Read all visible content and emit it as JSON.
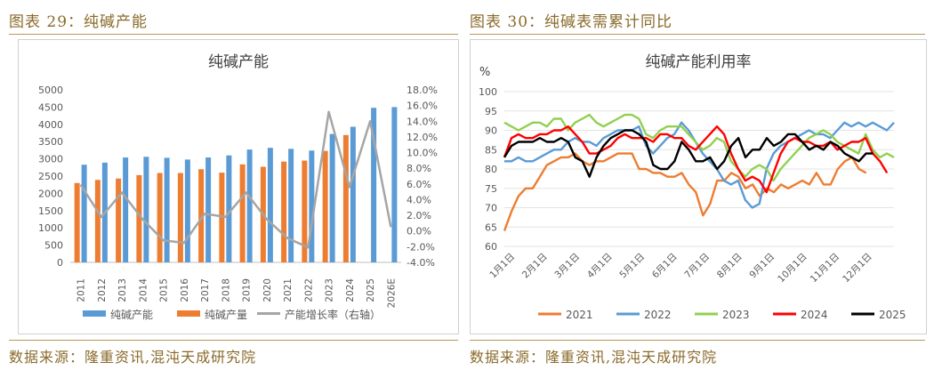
{
  "left": {
    "header": "图表 29：纯碱产能",
    "source": "数据来源：隆重资讯,混沌天成研究院",
    "chart_data": {
      "type": "bar",
      "title": "纯碱产能",
      "categories": [
        "2011",
        "2012",
        "2013",
        "2014",
        "2015",
        "2016",
        "2017",
        "2018",
        "2019",
        "2020",
        "2021",
        "2022",
        "2023",
        "2024",
        "2025",
        "2026E"
      ],
      "series": [
        {
          "name": "纯碱产能",
          "kind": "bar",
          "color": "#5b9bd5",
          "values": [
            2830,
            2890,
            3040,
            3060,
            3030,
            2980,
            3040,
            3100,
            3270,
            3320,
            3290,
            3240,
            3720,
            3930,
            4480,
            4500
          ]
        },
        {
          "name": "纯碱产量",
          "kind": "bar",
          "color": "#ed7d31",
          "values": [
            2300,
            2390,
            2430,
            2530,
            2590,
            2590,
            2700,
            2600,
            2840,
            2770,
            2920,
            2950,
            3230,
            3690,
            null,
            null
          ]
        },
        {
          "name": "产能增长率（右轴）",
          "kind": "line",
          "axis": "right",
          "color": "#a5a5a5",
          "values": [
            5.9,
            1.8,
            4.9,
            1.5,
            -1.2,
            -1.5,
            2.2,
            1.8,
            4.9,
            1.5,
            -0.9,
            -2.1,
            15.2,
            5.6,
            14.0,
            0.5
          ]
        }
      ],
      "yleft": {
        "min": 0,
        "max": 5000,
        "ticks": [
          "0",
          "500",
          "1000",
          "1500",
          "2000",
          "2500",
          "3000",
          "3500",
          "4000",
          "4500",
          "5000"
        ]
      },
      "yright": {
        "min": -4,
        "max": 18,
        "ticks": [
          "-4.0%",
          "-2.0%",
          "0.0%",
          "2.0%",
          "4.0%",
          "6.0%",
          "8.0%",
          "10.0%",
          "12.0%",
          "14.0%",
          "16.0%",
          "18.0%"
        ]
      },
      "legend": "bottom",
      "grid": false
    }
  },
  "right": {
    "header": "图表 30：纯碱表需累计同比",
    "source": "数据来源：隆重资讯,混沌天成研究院",
    "chart_data": {
      "type": "line",
      "title": "纯碱产能利用率",
      "yunit": "%",
      "ylim": [
        60,
        100
      ],
      "yticks": [
        "60",
        "65",
        "70",
        "75",
        "80",
        "85",
        "90",
        "95",
        "100"
      ],
      "xticks": [
        "1月1日",
        "2月1日",
        "3月1日",
        "4月1日",
        "5月1日",
        "6月1日",
        "7月1日",
        "8月1日",
        "9月1日",
        "10月1日",
        "11月1日",
        "12月1日"
      ],
      "grid": true,
      "legend": "bottom",
      "series": [
        {
          "name": "2021",
          "color": "#ed7d31",
          "values": [
            64,
            69,
            73,
            75,
            75,
            78,
            81,
            82,
            83,
            83,
            84,
            82,
            81,
            82,
            82,
            83,
            84,
            84,
            84,
            80,
            80,
            79,
            79,
            78,
            78,
            79,
            76,
            74,
            68,
            71,
            77,
            77,
            79,
            78,
            75,
            76,
            73,
            75,
            74,
            76,
            75,
            76,
            77,
            76,
            79,
            76,
            76,
            80,
            82,
            83,
            80,
            79
          ]
        },
        {
          "name": "2022",
          "color": "#5b9bd5",
          "values": [
            82,
            82,
            83,
            82,
            82,
            83,
            84,
            85,
            85,
            87,
            88,
            87,
            87,
            86,
            88,
            89,
            90,
            90,
            90,
            91,
            86,
            84,
            86,
            88,
            89,
            92,
            90,
            87,
            84,
            82,
            80,
            77,
            76,
            77,
            72,
            70,
            71,
            80,
            84,
            86,
            87,
            88,
            89,
            90,
            89,
            89,
            88,
            90,
            92,
            91,
            92,
            91,
            92,
            91,
            90,
            92
          ]
        },
        {
          "name": "2023",
          "color": "#92d050",
          "values": [
            92,
            91,
            90,
            91,
            92,
            92,
            91,
            93,
            93,
            90,
            92,
            93,
            94,
            92,
            91,
            92,
            93,
            94,
            94,
            93,
            89,
            88,
            90,
            91,
            91,
            91,
            89,
            87,
            85,
            86,
            88,
            87,
            82,
            80,
            78,
            80,
            81,
            80,
            77,
            80,
            82,
            84,
            86,
            88,
            89,
            90,
            89,
            87,
            86,
            85,
            84,
            89,
            85,
            83,
            84,
            83
          ]
        },
        {
          "name": "2024",
          "color": "#ff0000",
          "values": [
            83,
            88,
            89,
            88,
            88,
            89,
            89,
            90,
            90,
            91,
            89,
            87,
            84,
            84,
            85,
            86,
            88,
            89,
            88,
            88,
            88,
            87,
            89,
            89,
            88,
            88,
            86,
            85,
            87,
            89,
            91,
            89,
            84,
            80,
            77,
            78,
            77,
            74,
            79,
            84,
            87,
            88,
            87,
            87,
            86,
            86,
            87,
            85,
            86,
            87,
            87,
            88,
            84,
            82,
            79
          ]
        },
        {
          "name": "2025",
          "color": "#000000",
          "values": [
            83,
            86,
            87,
            87,
            87,
            88,
            87,
            87,
            88,
            87,
            83,
            82,
            78,
            83,
            86,
            88,
            89,
            90,
            90,
            89,
            87,
            81,
            80,
            80,
            82,
            87,
            85,
            82,
            82,
            83,
            80,
            82,
            86,
            88,
            83,
            85,
            85,
            88,
            86,
            87,
            89,
            89,
            87,
            85,
            86,
            85,
            87,
            86,
            84,
            83,
            82,
            84,
            84
          ]
        }
      ]
    }
  }
}
